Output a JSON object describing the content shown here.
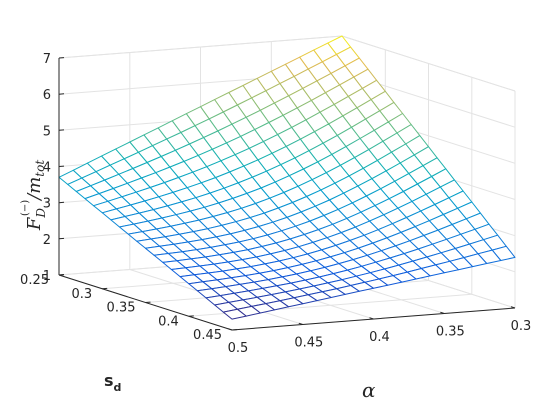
{
  "chart_data": {
    "type": "surface",
    "title": "",
    "xlabel": "α",
    "ylabel_main": "s",
    "ylabel_sub": "d",
    "zlabel_main": "F",
    "zlabel_sub": "D",
    "zlabel_sup": "(−)",
    "zlabel_den": "/m",
    "zlabel_den_sub": "tot",
    "alpha_ticks": [
      "0.3",
      "0.35",
      "0.4",
      "0.45",
      "0.5"
    ],
    "sd_ticks": [
      "0.25",
      "0.3",
      "0.35",
      "0.4",
      "0.45"
    ],
    "z_ticks": [
      "1",
      "2",
      "3",
      "4",
      "5",
      "6",
      "7"
    ],
    "alpha_range": [
      0.3,
      0.5
    ],
    "sd_range": [
      0.25,
      0.45
    ],
    "z_range": [
      1,
      7
    ],
    "grid": true,
    "colormap": "parula",
    "corner_values": {
      "alpha0.3_sd0.25": 7.0,
      "alpha0.5_sd0.25": 3.7,
      "alpha0.3_sd0.45": 2.4,
      "alpha0.5_sd0.45": 1.3
    }
  }
}
